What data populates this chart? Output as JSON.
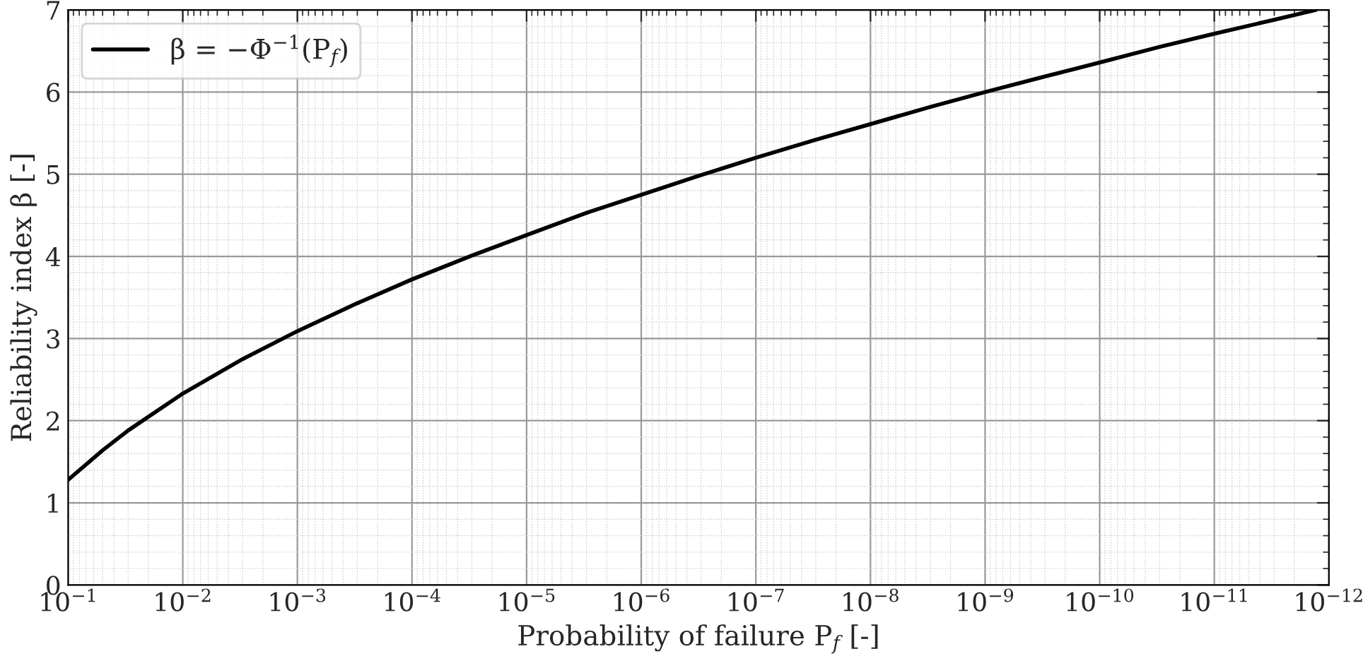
{
  "chart_data": {
    "type": "line",
    "xlabel": "Probability of failure P$_{f}$ [-]",
    "ylabel": "Reliability index β [-]",
    "log": "x",
    "xlim": [
      0.1,
      1e-12
    ],
    "ylim": [
      0,
      7
    ],
    "xticks": [
      {
        "value": 0.1,
        "label": "10$^{−1}$"
      },
      {
        "value": 0.01,
        "label": "10$^{−2}$"
      },
      {
        "value": 0.001,
        "label": "10$^{−3}$"
      },
      {
        "value": 0.0001,
        "label": "10$^{−4}$"
      },
      {
        "value": 1e-05,
        "label": "10$^{−5}$"
      },
      {
        "value": 1e-06,
        "label": "10$^{−6}$"
      },
      {
        "value": 1e-07,
        "label": "10$^{−7}$"
      },
      {
        "value": 1e-08,
        "label": "10$^{−8}$"
      },
      {
        "value": 1e-09,
        "label": "10$^{−9}$"
      },
      {
        "value": 1e-10,
        "label": "10$^{−10}$"
      },
      {
        "value": 1e-11,
        "label": "10$^{−11}$"
      },
      {
        "value": 1e-12,
        "label": "10$^{−12}$"
      }
    ],
    "yticks": [
      0,
      1,
      2,
      3,
      4,
      5,
      6,
      7
    ],
    "grid": true,
    "legend": "top left",
    "marker": "none",
    "line_style": "solid",
    "series": [
      {
        "name": "β = −Φ$^{−1}$(P$_{f}$)",
        "color": "#000000",
        "x": [
          0.1,
          0.05,
          0.03,
          0.01,
          0.003,
          0.001,
          0.0003,
          0.0001,
          3e-05,
          1e-05,
          3e-06,
          1e-06,
          3e-07,
          1e-07,
          3e-08,
          1e-08,
          3e-09,
          1e-09,
          3e-10,
          1e-10,
          3e-11,
          1e-11,
          3e-12,
          1.3e-12
        ],
        "values": [
          1.28,
          1.64,
          1.88,
          2.33,
          2.75,
          3.09,
          3.43,
          3.72,
          4.01,
          4.26,
          4.53,
          4.75,
          4.99,
          5.2,
          5.42,
          5.61,
          5.82,
          6.0,
          6.19,
          6.36,
          6.55,
          6.71,
          6.88,
          7.0
        ]
      }
    ]
  }
}
